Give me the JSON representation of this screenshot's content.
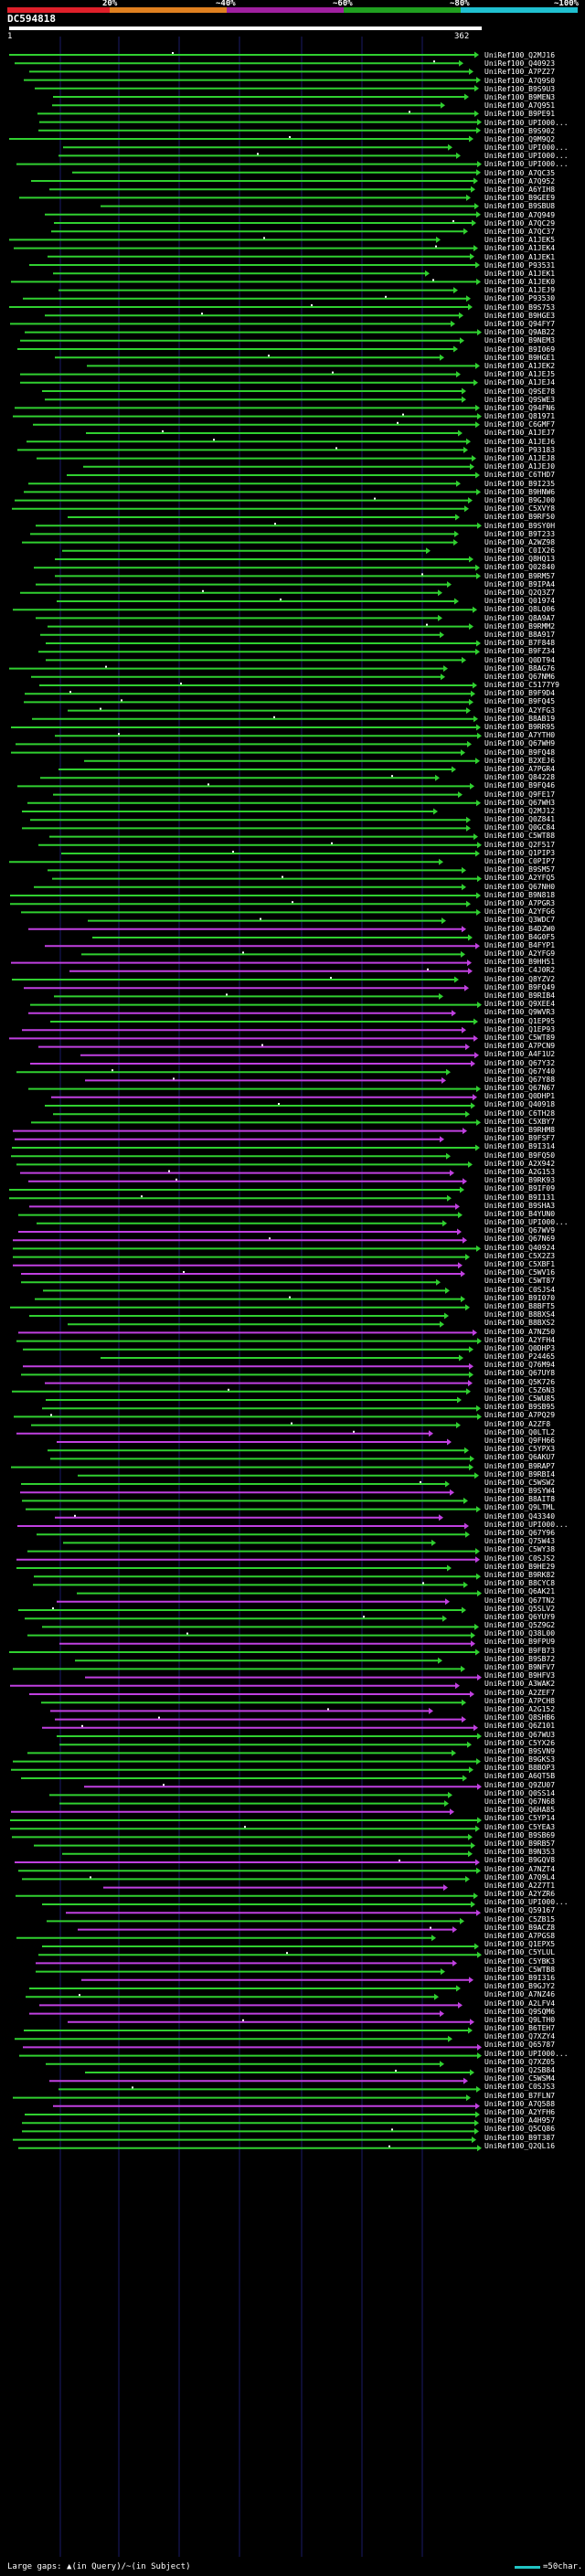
{
  "header": {
    "percent_marks": [
      "20%",
      "~40%",
      "~60%",
      "~80%",
      "~100%"
    ],
    "query_id": "DC594818",
    "query_start": "1",
    "query_end": "362"
  },
  "colors": {
    "background": "#000000",
    "bins": [
      "#e0202a",
      "#e08020",
      "#a020a0",
      "#20a020",
      "#20c0d0"
    ],
    "hit_forward": "#30d030",
    "hit_reverse": "#c040e0",
    "query_bar": "#ffffff"
  },
  "legend": {
    "text": "Large gaps: ▲(in Query)/~(in Subject)",
    "scale": "=50char."
  },
  "hits": [
    "UniRef100_Q2MJ16",
    "UniRef100_Q40923",
    "UniRef100_A7PZ27",
    "UniRef100_A7Q9S0",
    "UniRef100_B9S9U3",
    "UniRef100_B9MEN3",
    "UniRef100_A7Q951",
    "UniRef100_B9PE91",
    "UniRef100_UPI000...",
    "UniRef100_B9S902",
    "UniRef100_Q9M9Q2",
    "UniRef100_UPI000...",
    "UniRef100_UPI000...",
    "UniRef100_UPI000...",
    "UniRef100_A7QC35",
    "UniRef100_A7Q952",
    "UniRef100_A6YIH8",
    "UniRef100_B9GEE9",
    "UniRef100_B9SBU8",
    "UniRef100_A7Q949",
    "UniRef100_A7QC29",
    "UniRef100_A7QC37",
    "UniRef100_A1JEK5",
    "UniRef100_A1JEK4",
    "UniRef100_A1JEK1",
    "UniRef100_P93531",
    "UniRef100_A1JEK1",
    "UniRef100_A1JEK0",
    "UniRef100_A1JEJ9",
    "UniRef100_P93530",
    "UniRef100_B9S753",
    "UniRef100_B9HGE3",
    "UniRef100_Q94FY7",
    "UniRef100_Q9AB22",
    "UniRef100_B9NEM3",
    "UniRef100_B9I069",
    "UniRef100_B9HGE1",
    "UniRef100_A1JEK2",
    "UniRef100_A1JEJ5",
    "UniRef100_A1JEJ4",
    "UniRef100_Q9SE78",
    "UniRef100_Q9SWE3",
    "UniRef100_Q94FN6",
    "UniRef100_Q81971",
    "UniRef100_C6GMF7",
    "UniRef100_A1JEJ7",
    "UniRef100_A1JEJ6",
    "UniRef100_P93183",
    "UniRef100_A1JEJ8",
    "UniRef100_A1JEJ0",
    "UniRef100_C6THD7",
    "UniRef100_B9I235",
    "UniRef100_B9HNW6",
    "UniRef100_B9GJ00",
    "UniRef100_C5XVY8",
    "UniRef100_B9RF50",
    "UniRef100_B9SY0H",
    "UniRef100_B9T233",
    "UniRef100_A2WZ98",
    "UniRef100_C0IX26",
    "UniRef100_Q8HQ13",
    "UniRef100_Q02840",
    "UniRef100_B9RM57",
    "UniRef100_B9IPA4",
    "UniRef100_Q2Q3Z7",
    "UniRef100_Q01974",
    "UniRef100_Q8LQ06",
    "UniRef100_Q8A9A7",
    "UniRef100_B9RMM2",
    "UniRef100_B8A917",
    "UniRef100_B7F848",
    "UniRef100_B9FZ34",
    "UniRef100_Q0DT94",
    "UniRef100_B8AG76",
    "UniRef100_Q67NM6",
    "UniRef100_C5177Y9",
    "UniRef100_B9F9D4",
    "UniRef100_B9FQ45",
    "UniRef100_A2YFG3",
    "UniRef100_B8AB19",
    "UniRef100_B9RR95",
    "UniRef100_A7YTH0",
    "UniRef100_Q67WH9",
    "UniRef100_B9FQ48",
    "UniRef100_B2XEJ6",
    "UniRef100_A7PGR4",
    "UniRef100_Q84228",
    "UniRef100_B9FQ46",
    "UniRef100_Q9FE17",
    "UniRef100_Q67WH3",
    "UniRef100_Q2MJ12",
    "UniRef100_Q0Z841",
    "UniRef100_Q0GC84",
    "UniRef100_C5WT88",
    "UniRef100_Q2F517",
    "UniRef100_Q1PIP3",
    "UniRef100_C0PIP7",
    "UniRef100_B9SM57",
    "UniRef100_A2YFQ5",
    "UniRef100_Q67NH0",
    "UniRef100_B9N818",
    "UniRef100_A7PGR3",
    "UniRef100_A2YFG6",
    "UniRef100_Q3WDC7",
    "UniRef100_B4DZW0",
    "UniRef100_B4G0F5",
    "UniRef100_B4FYP1",
    "UniRef100_A2YFG9",
    "UniRef100_B9HH51",
    "UniRef100_C4J0R2",
    "UniRef100_Q8YZV2",
    "UniRef100_B9FQ49",
    "UniRef100_B9RIB4",
    "UniRef100_Q9XEE4",
    "UniRef100_Q9WVR3",
    "UniRef100_Q1EP95",
    "UniRef100_Q1EP93",
    "UniRef100_C5WT89",
    "UniRef100_A7PCN9",
    "UniRef100_A4F1U2",
    "UniRef100_Q67Y32",
    "UniRef100_Q67Y40",
    "UniRef100_Q67Y88",
    "UniRef100_Q67N67",
    "UniRef100_Q0DHP1",
    "UniRef100_Q40918",
    "UniRef100_C6TH28",
    "UniRef100_C5XBY7",
    "UniRef100_B9RHM8",
    "UniRef100_B9FSF7",
    "UniRef100_B9I314",
    "UniRef100_B9FQ50",
    "UniRef100_A2X942",
    "UniRef100_A2G153",
    "UniRef100_B9RK93",
    "UniRef100_B9IF09",
    "UniRef100_B9I131",
    "UniRef100_B9SHA3",
    "UniRef100_B4YUN0",
    "UniRef100_UPI000...",
    "UniRef100_Q67WV9",
    "UniRef100_Q67N69",
    "UniRef100_Q40924",
    "UniRef100_C5X2Z3",
    "UniRef100_C5XBF1",
    "UniRef100_C5WV16",
    "UniRef100_C5WT87",
    "UniRef100_C0SJS4",
    "UniRef100_B9I070",
    "UniRef100_B8BFT5",
    "UniRef100_B8BXS4",
    "UniRef100_B8BXS2",
    "UniRef100_A7NZ50",
    "UniRef100_A2YFH4",
    "UniRef100_Q0DHP3",
    "UniRef100_P24465",
    "UniRef100_Q76M94",
    "UniRef100_Q67UY8",
    "UniRef100_Q5K726",
    "UniRef100_C5Z6N3",
    "UniRef100_C5WU85",
    "UniRef100_B9SB95",
    "UniRef100_A7PQ29",
    "UniRef100_A2ZF8",
    "UniRef100_Q0LTL2",
    "UniRef100_Q9FH66",
    "UniRef100_C5YPX3",
    "UniRef100_Q6AKU7",
    "UniRef100_B9RAP7",
    "UniRef100_B9RBI4",
    "UniRef100_C5WSW2",
    "UniRef100_B9SYW4",
    "UniRef100_B8AIT8",
    "UniRef100_Q9LTML",
    "UniRef100_Q43340",
    "UniRef100_UPI000...",
    "UniRef100_Q67Y96",
    "UniRef100_Q75W43",
    "UniRef100_C5WY38",
    "UniRef100_C0SJS2",
    "UniRef100_B9HE29",
    "UniRef100_B9RK82",
    "UniRef100_B8CYC8",
    "UniRef100_Q6AK21",
    "UniRef100_Q67TN2",
    "UniRef100_Q5SLV2",
    "UniRef100_Q6YUY9",
    "UniRef100_Q5Z9G2",
    "UniRef100_Q38L00",
    "UniRef100_B9FPU9",
    "UniRef100_B9FB73",
    "UniRef100_B9SB72",
    "UniRef100_B9NFV7",
    "UniRef100_B9HFV3",
    "UniRef100_A3WAK2",
    "UniRef100_A2ZEF7",
    "UniRef100_A7PCH8",
    "UniRef100_A2G152",
    "UniRef100_Q8SHB6",
    "UniRef100_Q6Z101",
    "UniRef100_Q67WU3",
    "UniRef100_C5YX26",
    "UniRef100_B9SVN9",
    "UniRef100_B9GKS3",
    "UniRef100_B8BOP3",
    "UniRef100_A6QT5B",
    "UniRef100_Q9ZU07",
    "UniRef100_Q0SS14",
    "UniRef100_Q67N68",
    "UniRef100_Q6HA85",
    "UniRef100_C5YP14",
    "UniRef100_C5YEA3",
    "UniRef100_B9SB69",
    "UniRef100_B9RB57",
    "UniRef100_B9N353",
    "UniRef100_B9GQV8",
    "UniRef100_A7NZT4",
    "UniRef100_A7Q9L4",
    "UniRef100_A2Z7T1",
    "UniRef100_A2YZR6",
    "UniRef100_UPI000...",
    "UniRef100_Q59167",
    "UniRef100_C5ZB15",
    "UniRef100_B9ACZ8",
    "UniRef100_A7PGS8",
    "UniRef100_Q1EPX5",
    "UniRef100_C5YLUL",
    "UniRef100_C5YBK3",
    "UniRef100_C5WTB8",
    "UniRef100_B9I316",
    "UniRef100_B9GJY2",
    "UniRef100_A7NZ46",
    "UniRef100_A2LFV4",
    "UniRef100_Q9SQM6",
    "UniRef100_Q9LTH0",
    "UniRef100_B6TEH7",
    "UniRef100_Q7XZY4",
    "UniRef100_Q65787",
    "UniRef100_UPI000...",
    "UniRef100_Q7XZ05",
    "UniRef100_Q2SB84",
    "UniRef100_C5WSM4",
    "UniRef100_C0SJS3",
    "UniRef100_B7FLN7",
    "UniRef100_A7Q588",
    "UniRef100_A2YFH6",
    "UniRef100_A4H957",
    "UniRef100_Q5CQ86",
    "UniRef100_B9T387",
    "UniRef100_Q2QL16"
  ]
}
